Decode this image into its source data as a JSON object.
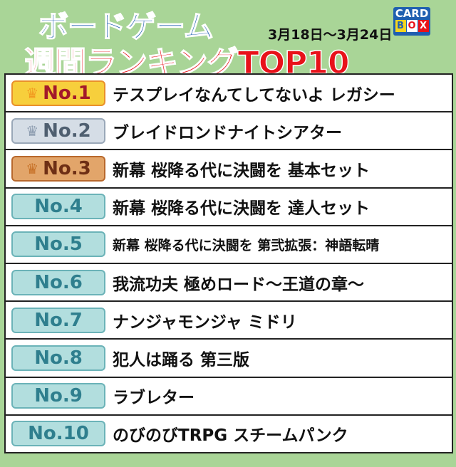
{
  "header": {
    "title_line1": "ボードゲーム",
    "title_line2": "週間ランキングTOP10",
    "date_range": "3月18日〜3月24日",
    "logo": {
      "top": "CARD",
      "letters": [
        "B",
        "O",
        "X"
      ]
    }
  },
  "colors": {
    "title_blue": "#1f5fb0",
    "title_red": "#e8121a",
    "background": "#a9d597"
  },
  "rankings": [
    {
      "rank": "No.1",
      "title": "テスプレイなんてしてないよ レガシー",
      "crown": true,
      "badge": "gold"
    },
    {
      "rank": "No.2",
      "title": "ブレイドロンドナイトシアター",
      "crown": true,
      "badge": "silver"
    },
    {
      "rank": "No.3",
      "title": "新幕 桜降る代に決闘を 基本セット",
      "crown": true,
      "badge": "bronze"
    },
    {
      "rank": "No.4",
      "title": "新幕 桜降る代に決闘を 達人セット",
      "crown": false,
      "badge": "teal"
    },
    {
      "rank": "No.5",
      "title": "新幕 桜降る代に決闘を 第弐拡張：神語転晴",
      "crown": false,
      "badge": "teal"
    },
    {
      "rank": "No.6",
      "title": "我流功夫 極めロード〜王道の章〜",
      "crown": false,
      "badge": "teal"
    },
    {
      "rank": "No.7",
      "title": "ナンジャモンジャ ミドリ",
      "crown": false,
      "badge": "teal"
    },
    {
      "rank": "No.8",
      "title": "犯人は踊る 第三版",
      "crown": false,
      "badge": "teal"
    },
    {
      "rank": "No.9",
      "title": "ラブレター",
      "crown": false,
      "badge": "teal"
    },
    {
      "rank": "No.10",
      "title": "のびのびTRPG スチームパンク",
      "crown": false,
      "badge": "teal"
    }
  ]
}
